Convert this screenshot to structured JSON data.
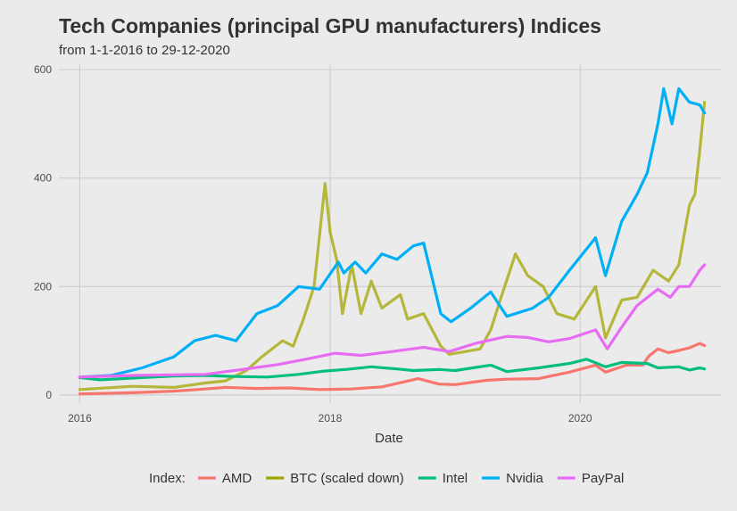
{
  "chart_data": {
    "type": "line",
    "title": "Tech Companies (principal GPU manufacturers) Indices",
    "subtitle": "from 1-1-2016 to 29-12-2020",
    "xlabel": "Date",
    "ylabel": "",
    "x_ticks": [
      "2016",
      "2018",
      "2020"
    ],
    "y_ticks": [
      "0",
      "200",
      "400",
      "600"
    ],
    "xlim": [
      "2015-11-01",
      "2021-02-15"
    ],
    "ylim": [
      -15,
      610
    ],
    "grid": true,
    "legend": {
      "title": "Index:",
      "position": "bottom"
    },
    "series": [
      {
        "name": "AMD",
        "color": "#F8766D",
        "points": [
          [
            "2016-01-01",
            2
          ],
          [
            "2016-06-01",
            4
          ],
          [
            "2016-10-01",
            7
          ],
          [
            "2017-01-01",
            11
          ],
          [
            "2017-03-01",
            14
          ],
          [
            "2017-06-01",
            12
          ],
          [
            "2017-09-01",
            13
          ],
          [
            "2017-12-01",
            10
          ],
          [
            "2018-03-01",
            11
          ],
          [
            "2018-06-01",
            15
          ],
          [
            "2018-09-15",
            30
          ],
          [
            "2018-11-15",
            20
          ],
          [
            "2019-01-01",
            19
          ],
          [
            "2019-04-01",
            27
          ],
          [
            "2019-06-01",
            29
          ],
          [
            "2019-09-01",
            30
          ],
          [
            "2019-12-01",
            42
          ],
          [
            "2020-02-15",
            55
          ],
          [
            "2020-03-15",
            42
          ],
          [
            "2020-05-15",
            55
          ],
          [
            "2020-07-01",
            55
          ],
          [
            "2020-07-20",
            72
          ],
          [
            "2020-08-15",
            85
          ],
          [
            "2020-09-15",
            78
          ],
          [
            "2020-10-15",
            82
          ],
          [
            "2020-11-15",
            87
          ],
          [
            "2020-12-15",
            95
          ],
          [
            "2020-12-29",
            91
          ]
        ]
      },
      {
        "name": "BTC (scaled down)",
        "color": "#A3A500",
        "points": [
          [
            "2016-01-01",
            10
          ],
          [
            "2016-06-01",
            16
          ],
          [
            "2016-10-01",
            14
          ],
          [
            "2017-01-01",
            22
          ],
          [
            "2017-03-01",
            26
          ],
          [
            "2017-05-01",
            45
          ],
          [
            "2017-06-15",
            70
          ],
          [
            "2017-08-15",
            100
          ],
          [
            "2017-09-15",
            90
          ],
          [
            "2017-10-15",
            140
          ],
          [
            "2017-11-15",
            200
          ],
          [
            "2017-12-17",
            390
          ],
          [
            "2018-01-01",
            300
          ],
          [
            "2018-01-20",
            250
          ],
          [
            "2018-02-06",
            150
          ],
          [
            "2018-03-05",
            240
          ],
          [
            "2018-04-01",
            150
          ],
          [
            "2018-05-01",
            210
          ],
          [
            "2018-06-01",
            160
          ],
          [
            "2018-07-25",
            185
          ],
          [
            "2018-08-15",
            140
          ],
          [
            "2018-10-01",
            150
          ],
          [
            "2018-11-20",
            90
          ],
          [
            "2018-12-15",
            75
          ],
          [
            "2019-02-01",
            80
          ],
          [
            "2019-03-15",
            85
          ],
          [
            "2019-04-15",
            120
          ],
          [
            "2019-05-15",
            180
          ],
          [
            "2019-06-26",
            260
          ],
          [
            "2019-08-01",
            220
          ],
          [
            "2019-09-15",
            200
          ],
          [
            "2019-10-25",
            150
          ],
          [
            "2019-12-15",
            140
          ],
          [
            "2020-02-15",
            200
          ],
          [
            "2020-03-15",
            105
          ],
          [
            "2020-05-01",
            175
          ],
          [
            "2020-06-15",
            180
          ],
          [
            "2020-08-01",
            230
          ],
          [
            "2020-09-15",
            210
          ],
          [
            "2020-10-15",
            240
          ],
          [
            "2020-11-15",
            350
          ],
          [
            "2020-12-01",
            370
          ],
          [
            "2020-12-15",
            450
          ],
          [
            "2020-12-29",
            540
          ]
        ]
      },
      {
        "name": "Intel",
        "color": "#00BF7D",
        "points": [
          [
            "2016-01-01",
            32
          ],
          [
            "2016-03-01",
            28
          ],
          [
            "2016-07-01",
            32
          ],
          [
            "2016-10-01",
            35
          ],
          [
            "2017-01-01",
            36
          ],
          [
            "2017-04-01",
            34
          ],
          [
            "2017-07-01",
            33
          ],
          [
            "2017-10-01",
            38
          ],
          [
            "2017-12-15",
            44
          ],
          [
            "2018-02-15",
            47
          ],
          [
            "2018-05-01",
            52
          ],
          [
            "2018-07-15",
            48
          ],
          [
            "2018-09-01",
            45
          ],
          [
            "2018-11-15",
            47
          ],
          [
            "2019-01-01",
            45
          ],
          [
            "2019-04-15",
            55
          ],
          [
            "2019-06-01",
            43
          ],
          [
            "2019-09-01",
            50
          ],
          [
            "2019-12-01",
            58
          ],
          [
            "2020-01-20",
            66
          ],
          [
            "2020-03-15",
            52
          ],
          [
            "2020-05-01",
            60
          ],
          [
            "2020-07-15",
            58
          ],
          [
            "2020-08-15",
            50
          ],
          [
            "2020-10-15",
            52
          ],
          [
            "2020-11-15",
            46
          ],
          [
            "2020-12-15",
            50
          ],
          [
            "2020-12-29",
            48
          ]
        ]
      },
      {
        "name": "Nvidia",
        "color": "#00B0F6",
        "points": [
          [
            "2016-01-01",
            33
          ],
          [
            "2016-04-01",
            36
          ],
          [
            "2016-07-01",
            50
          ],
          [
            "2016-10-01",
            70
          ],
          [
            "2016-12-01",
            100
          ],
          [
            "2017-02-01",
            110
          ],
          [
            "2017-04-01",
            100
          ],
          [
            "2017-06-01",
            150
          ],
          [
            "2017-08-01",
            165
          ],
          [
            "2017-10-01",
            200
          ],
          [
            "2017-12-01",
            195
          ],
          [
            "2018-01-25",
            245
          ],
          [
            "2018-02-10",
            225
          ],
          [
            "2018-03-15",
            245
          ],
          [
            "2018-04-15",
            225
          ],
          [
            "2018-06-01",
            260
          ],
          [
            "2018-07-15",
            250
          ],
          [
            "2018-09-01",
            275
          ],
          [
            "2018-10-01",
            280
          ],
          [
            "2018-11-20",
            150
          ],
          [
            "2018-12-20",
            135
          ],
          [
            "2019-02-15",
            160
          ],
          [
            "2019-04-15",
            190
          ],
          [
            "2019-06-01",
            145
          ],
          [
            "2019-08-15",
            160
          ],
          [
            "2019-10-01",
            180
          ],
          [
            "2019-12-01",
            230
          ],
          [
            "2020-02-15",
            290
          ],
          [
            "2020-03-15",
            220
          ],
          [
            "2020-05-01",
            320
          ],
          [
            "2020-06-15",
            370
          ],
          [
            "2020-07-15",
            410
          ],
          [
            "2020-08-15",
            500
          ],
          [
            "2020-09-01",
            565
          ],
          [
            "2020-09-25",
            500
          ],
          [
            "2020-10-15",
            565
          ],
          [
            "2020-11-15",
            540
          ],
          [
            "2020-12-15",
            535
          ],
          [
            "2020-12-29",
            520
          ]
        ]
      },
      {
        "name": "PayPal",
        "color": "#E76BF3",
        "points": [
          [
            "2016-01-01",
            33
          ],
          [
            "2016-06-01",
            36
          ],
          [
            "2017-01-01",
            38
          ],
          [
            "2017-05-01",
            48
          ],
          [
            "2017-08-01",
            56
          ],
          [
            "2017-11-01",
            67
          ],
          [
            "2018-01-15",
            77
          ],
          [
            "2018-04-01",
            73
          ],
          [
            "2018-07-01",
            80
          ],
          [
            "2018-10-01",
            88
          ],
          [
            "2018-12-15",
            80
          ],
          [
            "2019-03-01",
            95
          ],
          [
            "2019-06-01",
            108
          ],
          [
            "2019-08-01",
            106
          ],
          [
            "2019-10-01",
            98
          ],
          [
            "2019-12-01",
            104
          ],
          [
            "2020-02-15",
            120
          ],
          [
            "2020-03-20",
            85
          ],
          [
            "2020-05-01",
            125
          ],
          [
            "2020-06-15",
            165
          ],
          [
            "2020-08-15",
            195
          ],
          [
            "2020-09-20",
            180
          ],
          [
            "2020-10-15",
            200
          ],
          [
            "2020-11-15",
            200
          ],
          [
            "2020-12-15",
            230
          ],
          [
            "2020-12-29",
            240
          ]
        ]
      }
    ]
  }
}
